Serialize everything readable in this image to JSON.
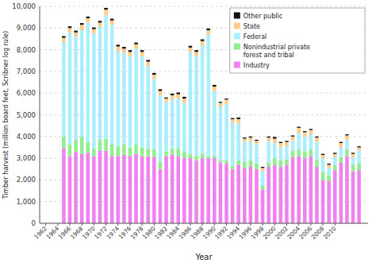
{
  "chart_data": {
    "type": "bar",
    "stacked": true,
    "xlabel": "Year",
    "ylabel": "Timber harvest (million board feet, Scribner log rule)",
    "x": [
      1965,
      1966,
      1967,
      1968,
      1969,
      1970,
      1971,
      1972,
      1973,
      1974,
      1975,
      1976,
      1977,
      1978,
      1979,
      1980,
      1981,
      1982,
      1983,
      1984,
      1985,
      1986,
      1987,
      1988,
      1989,
      1990,
      1991,
      1992,
      1993,
      1994,
      1995,
      1996,
      1997,
      1998,
      1999,
      2000,
      2001,
      2002,
      2003,
      2004,
      2005,
      2006,
      2007,
      2008,
      2009,
      2010,
      2011,
      2012,
      2013,
      2014
    ],
    "series": [
      {
        "name": "Industry",
        "color": "#EE82EE",
        "values": [
          3450,
          3100,
          3300,
          3200,
          3250,
          3100,
          3350,
          3350,
          3100,
          3100,
          3150,
          3100,
          3200,
          3100,
          3100,
          3050,
          2500,
          3100,
          3150,
          3100,
          3000,
          3000,
          2900,
          3000,
          3000,
          3000,
          2800,
          2750,
          2500,
          2700,
          2550,
          2600,
          2500,
          1550,
          2600,
          2700,
          2600,
          2700,
          3050,
          3100,
          3000,
          3100,
          2600,
          2000,
          1950,
          2450,
          2800,
          3100,
          2400,
          2450
        ]
      },
      {
        "name": "Nonindustrial private\nforest and tribal",
        "color": "#90EE90",
        "values": [
          550,
          550,
          550,
          800,
          500,
          350,
          500,
          550,
          550,
          450,
          500,
          400,
          450,
          400,
          350,
          350,
          350,
          200,
          300,
          350,
          300,
          200,
          200,
          200,
          100,
          100,
          100,
          150,
          150,
          200,
          300,
          300,
          250,
          200,
          200,
          300,
          300,
          250,
          300,
          300,
          300,
          300,
          350,
          350,
          250,
          250,
          250,
          300,
          300,
          300
        ]
      },
      {
        "name": "Federal",
        "color": "#AAEEFF",
        "values": [
          4350,
          5150,
          4750,
          4900,
          5500,
          5300,
          5200,
          5700,
          5500,
          4400,
          4200,
          4200,
          4400,
          4200,
          3800,
          3250,
          3050,
          2300,
          2250,
          2300,
          2250,
          4700,
          4600,
          5000,
          5600,
          3000,
          2450,
          2600,
          2000,
          1700,
          900,
          900,
          900,
          650,
          1000,
          700,
          600,
          600,
          450,
          750,
          700,
          700,
          800,
          650,
          350,
          350,
          450,
          450,
          350,
          600
        ]
      },
      {
        "name": "State",
        "color": "#FFCC88",
        "values": [
          200,
          200,
          200,
          250,
          200,
          200,
          200,
          250,
          200,
          200,
          200,
          200,
          200,
          200,
          200,
          200,
          200,
          150,
          200,
          200,
          200,
          200,
          200,
          200,
          200,
          200,
          200,
          200,
          150,
          200,
          150,
          150,
          150,
          150,
          150,
          200,
          200,
          200,
          200,
          250,
          200,
          200,
          200,
          150,
          150,
          150,
          200,
          200,
          150,
          150
        ]
      },
      {
        "name": "Other public",
        "color": "#111111",
        "values": [
          80,
          80,
          80,
          80,
          80,
          80,
          80,
          80,
          80,
          80,
          80,
          80,
          80,
          80,
          80,
          80,
          80,
          50,
          80,
          80,
          80,
          80,
          80,
          80,
          80,
          80,
          50,
          50,
          50,
          80,
          50,
          50,
          50,
          50,
          50,
          80,
          50,
          50,
          50,
          50,
          50,
          50,
          50,
          50,
          50,
          50,
          50,
          50,
          50,
          50
        ]
      }
    ],
    "xlim": [
      1961.0,
      2015.5
    ],
    "xticks": [
      1962,
      1964,
      1966,
      1968,
      1970,
      1972,
      1974,
      1976,
      1978,
      1980,
      1982,
      1984,
      1986,
      1988,
      1990,
      1992,
      1994,
      1996,
      1998,
      2000,
      2002,
      2004,
      2006,
      2008,
      2010
    ],
    "ylim": [
      0,
      10000
    ],
    "yticks": [
      0,
      {
        "value": 1000,
        "label": "1,000"
      },
      {
        "value": 2000,
        "label": "2,000"
      },
      {
        "value": 3000,
        "label": "3,000"
      },
      {
        "value": 4000,
        "label": "4,000"
      },
      {
        "value": 5000,
        "label": "5,000"
      },
      {
        "value": 6000,
        "label": "6,000"
      },
      {
        "value": 7000,
        "label": "7,000"
      },
      {
        "value": 8000,
        "label": "8,000"
      },
      {
        "value": 9000,
        "label": "9,000"
      },
      {
        "value": 10000,
        "label": "10,000"
      }
    ],
    "grid": true,
    "legend": "upper right"
  }
}
